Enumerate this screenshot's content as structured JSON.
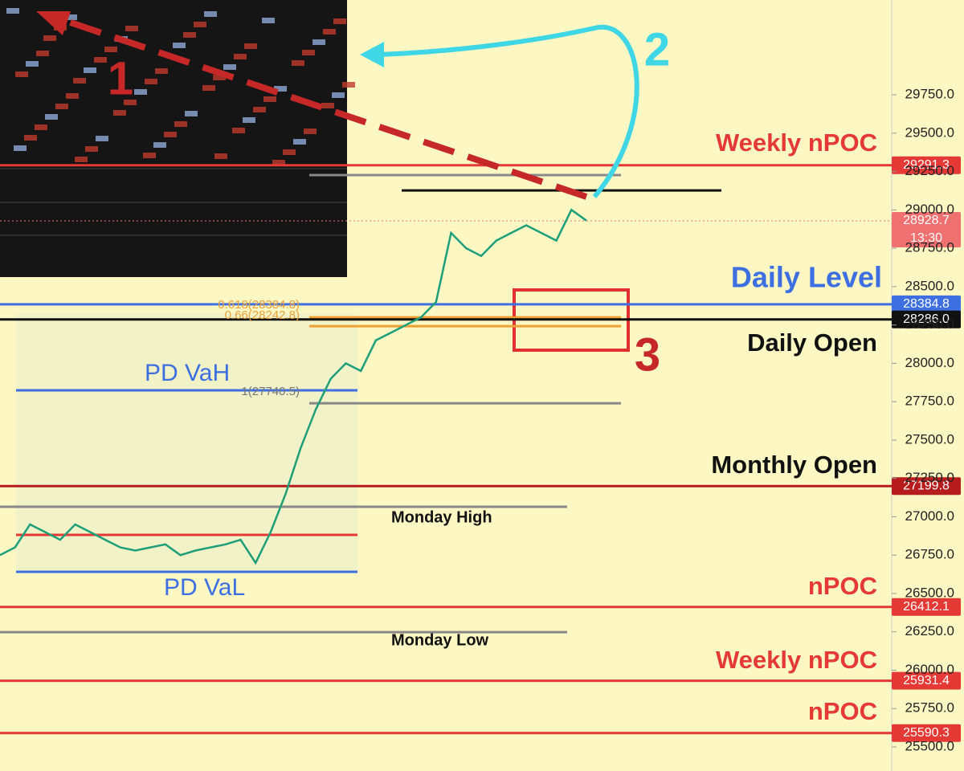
{
  "chart_data": {
    "type": "line",
    "ylim": [
      25343,
      30368
    ],
    "yticks": [
      {
        "value": 25500,
        "label": "25500.0"
      },
      {
        "value": 25750,
        "label": "25750.0"
      },
      {
        "value": 26000,
        "label": "26000.0"
      },
      {
        "value": 26250,
        "label": "26250.0"
      },
      {
        "value": 26500,
        "label": "26500.0"
      },
      {
        "value": 26750,
        "label": "26750.0"
      },
      {
        "value": 27000,
        "label": "27000.0"
      },
      {
        "value": 27250,
        "label": "27250.0"
      },
      {
        "value": 27500,
        "label": "27500.0"
      },
      {
        "value": 27750,
        "label": "27750.0"
      },
      {
        "value": 28000,
        "label": "28000.0"
      },
      {
        "value": 28250,
        "label": "28250.0"
      },
      {
        "value": 28500,
        "label": "28500.0"
      },
      {
        "value": 28750,
        "label": "28750.0"
      },
      {
        "value": 29000,
        "label": "29000.0"
      },
      {
        "value": 29250,
        "label": "29250.0"
      },
      {
        "value": 29500,
        "label": "29500.0"
      },
      {
        "value": 29750,
        "label": "29750.0"
      }
    ],
    "color": "#1f9e7a",
    "values": [
      26750,
      26800,
      26950,
      26900,
      26850,
      26950,
      26900,
      26850,
      26800,
      26780,
      26800,
      26820,
      26750,
      26780,
      26800,
      26820,
      26850,
      26700,
      26900,
      27150,
      27450,
      27700,
      27900,
      28000,
      27950,
      28150,
      28200,
      28250,
      28300,
      28400,
      28850,
      28750,
      28700,
      28800,
      28850,
      28900,
      28850,
      28800,
      29000,
      28930
    ],
    "levels": [
      {
        "value": 29291.3,
        "color": "#e53935"
      },
      {
        "value": 28928.7,
        "color": "#f07070",
        "note": "13:30"
      },
      {
        "value": 28384.8,
        "color": "#3d6fe0"
      },
      {
        "value": 28286.0,
        "value_label": "28286.0",
        "color": "#111111"
      },
      {
        "value": 27199.8,
        "color": "#b71c1c"
      },
      {
        "value": 26412.1,
        "color": "#e53935"
      },
      {
        "value": 25931.4,
        "color": "#e53935"
      },
      {
        "value": 25590.3,
        "color": "#e53935"
      }
    ],
    "lines": [
      {
        "value": 29227,
        "color": "#888888"
      },
      {
        "value": 29127,
        "color": "#111111"
      },
      {
        "value": 28300,
        "color": "#f0a030"
      },
      {
        "value": 28242,
        "color": "#f0a030"
      },
      {
        "value": 27824,
        "color": "#3d6fe0"
      },
      {
        "value": 27740,
        "color": "#888888"
      },
      {
        "value": 27065,
        "color": "#888888"
      },
      {
        "value": 26882,
        "color": "#e53935"
      },
      {
        "value": 26641,
        "color": "#3d6fe0"
      },
      {
        "value": 26248,
        "color": "#888888"
      }
    ],
    "labels": {
      "weekly_npoc_1": "Weekly nPOC",
      "daily_level": "Daily Level",
      "daily_open": "Daily Open",
      "monthly_open": "Monthly Open",
      "monday_high": "Monday High",
      "monday_low": "Monday Low",
      "npoc_1": "nPOC",
      "weekly_npoc_2": "Weekly nPOC",
      "npoc_2": "nPOC",
      "pd_vah": "PD VaH",
      "pd_val": "PD VaL",
      "fib_618": "0.618(28384.8)",
      "fib_66": "0.66(28242.8)",
      "fib_1": "1(27740.5)",
      "n1": "1",
      "n2": "2",
      "n3": "3"
    }
  }
}
